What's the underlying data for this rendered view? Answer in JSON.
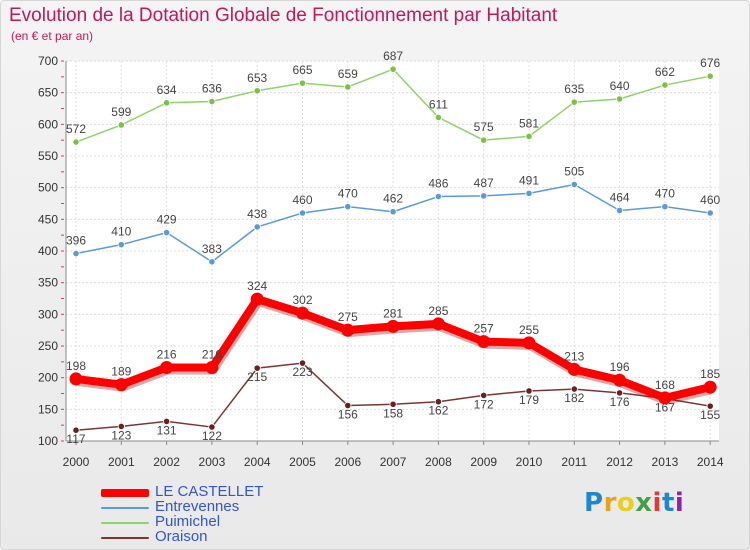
{
  "title": "Evolution de la Dotation Globale de Fonctionnement par Habitant",
  "subtitle": "(en € et par an)",
  "logo_text": "Proxiti",
  "chart_data": {
    "type": "line",
    "x": [
      2000,
      2001,
      2002,
      2003,
      2004,
      2005,
      2006,
      2007,
      2008,
      2009,
      2010,
      2011,
      2012,
      2013,
      2014
    ],
    "ylim": [
      100,
      700
    ],
    "yticks": [
      100,
      150,
      200,
      250,
      300,
      350,
      400,
      450,
      500,
      550,
      600,
      650,
      700
    ],
    "grid": true,
    "legend_position": "bottom-left",
    "series": [
      {
        "name": "LE CASTELLET",
        "color": "#ff0000",
        "marker_color": "#ff0000",
        "values": [
          198,
          189,
          216,
          216,
          324,
          302,
          275,
          281,
          285,
          257,
          255,
          213,
          196,
          168,
          185
        ]
      },
      {
        "name": "Entrevennes",
        "color": "#5b9bd5",
        "marker_color": "#5b9bd5",
        "values": [
          396,
          410,
          429,
          383,
          438,
          460,
          470,
          462,
          486,
          487,
          491,
          505,
          464,
          470,
          460
        ]
      },
      {
        "name": "Puimichel",
        "color": "#8fd16a",
        "marker_color": "#7cc144",
        "values": [
          572,
          599,
          634,
          636,
          653,
          665,
          659,
          687,
          611,
          575,
          581,
          635,
          640,
          662,
          676
        ]
      },
      {
        "name": "Oraison",
        "color": "#7a3535",
        "marker_color": "#6b1f1f",
        "values": [
          117,
          123,
          131,
          122,
          215,
          223,
          156,
          158,
          162,
          172,
          179,
          182,
          176,
          167,
          155
        ]
      }
    ]
  }
}
